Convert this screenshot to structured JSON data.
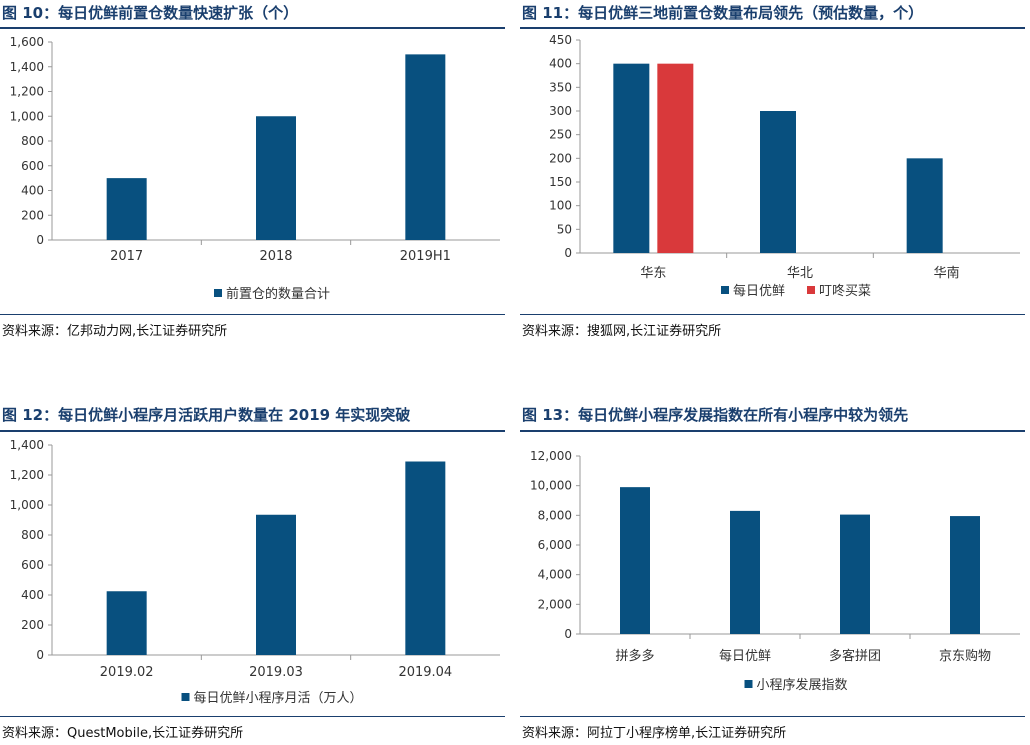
{
  "colors": {
    "primary": "#08507f",
    "secondary": "#d9393b",
    "title": "#1a3f6e",
    "axis": "#999999"
  },
  "chart_data": [
    {
      "type": "bar",
      "title": "图 10：每日优鲜前置仓数量快速扩张（个）",
      "categories": [
        "2017",
        "2018",
        "2019H1"
      ],
      "series": [
        {
          "name": "前置仓的数量合计",
          "values": [
            500,
            1000,
            1500
          ]
        }
      ],
      "ylim": [
        0,
        1600
      ],
      "yticks": [
        "0",
        "200",
        "400",
        "600",
        "800",
        "1,000",
        "1,200",
        "1,400",
        "1,600"
      ],
      "xlabel": "",
      "ylabel": "",
      "source": "资料来源：亿邦动力网,长江证券研究所"
    },
    {
      "type": "bar",
      "title": "图 11：每日优鲜三地前置仓数量布局领先（预估数量，个）",
      "categories": [
        "华东",
        "华北",
        "华南"
      ],
      "series": [
        {
          "name": "每日优鲜",
          "values": [
            400,
            300,
            200
          ]
        },
        {
          "name": "叮咚买菜",
          "values": [
            400,
            0,
            0
          ]
        }
      ],
      "ylim": [
        0,
        450
      ],
      "yticks": [
        "0",
        "50",
        "100",
        "150",
        "200",
        "250",
        "300",
        "350",
        "400",
        "450"
      ],
      "xlabel": "",
      "ylabel": "",
      "source": "资料来源：搜狐网,长江证券研究所"
    },
    {
      "type": "bar",
      "title": "图 12：每日优鲜小程序月活跃用户数量在 2019 年实现突破",
      "categories": [
        "2019.02",
        "2019.03",
        "2019.04"
      ],
      "series": [
        {
          "name": "每日优鲜小程序月活（万人）",
          "values": [
            425,
            935,
            1290
          ]
        }
      ],
      "ylim": [
        0,
        1400
      ],
      "yticks": [
        "0",
        "200",
        "400",
        "600",
        "800",
        "1,000",
        "1,200",
        "1,400"
      ],
      "xlabel": "",
      "ylabel": "",
      "source": "资料来源：QuestMobile,长江证券研究所"
    },
    {
      "type": "bar",
      "title": "图 13：每日优鲜小程序发展指数在所有小程序中较为领先",
      "categories": [
        "拼多多",
        "每日优鲜",
        "多客拼团",
        "京东购物"
      ],
      "series": [
        {
          "name": "小程序发展指数",
          "values": [
            9900,
            8300,
            8050,
            7950
          ]
        }
      ],
      "ylim": [
        0,
        12000
      ],
      "yticks": [
        "0",
        "2,000",
        "4,000",
        "6,000",
        "8,000",
        "10,000",
        "12,000"
      ],
      "xlabel": "",
      "ylabel": "",
      "source": "资料来源：阿拉丁小程序榜单,长江证券研究所"
    }
  ]
}
